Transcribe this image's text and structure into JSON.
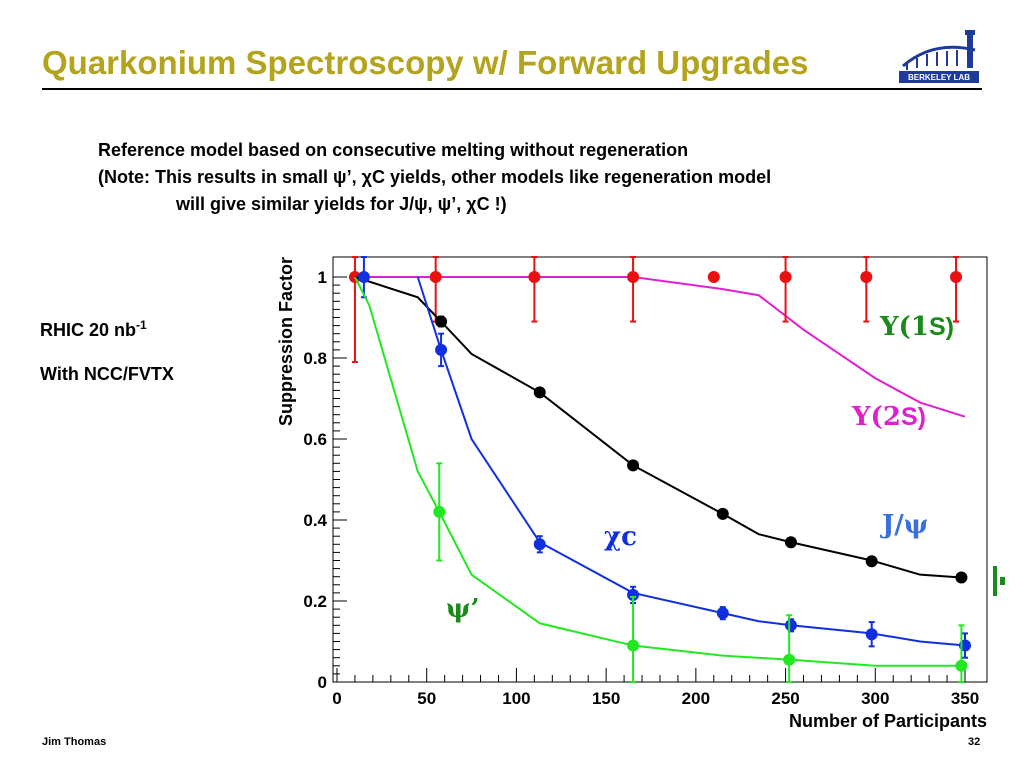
{
  "title": "Quarkonium Spectroscopy w/ Forward Upgrades",
  "intro": {
    "line1": "Reference model based on consecutive melting without regeneration",
    "line2": "(Note: This results in small ψ’, χC yields, other models like regeneration model",
    "line3": "will give similar yields for J/ψ, ψ’, χC !)"
  },
  "side": {
    "rhic_prefix": "RHIC  20 nb",
    "rhic_sup": "-1",
    "detector": "With NCC/FVTX"
  },
  "footer": {
    "author": "Jim Thomas",
    "page": "32"
  },
  "logo": {
    "text": "BERKELEY LAB"
  },
  "colors": {
    "title": "#b3a31d",
    "upsilon1s": "#1a8a1a",
    "upsilon2s": "#e020d0",
    "jpsi": "#3a6fe0",
    "chic": "#1030e0",
    "psiprime": "#1a8a1a"
  },
  "labels": {
    "upsilon1s": {
      "sym": "Υ(1",
      "s": "S)"
    },
    "upsilon2s": {
      "sym": "Υ(2",
      "s": "S)"
    },
    "jpsi": "J/ψ",
    "chic": "χc",
    "psiprime": "ψ’"
  },
  "chart_data": {
    "type": "scatter",
    "xlabel": "Number of Participants",
    "ylabel": "Suppression Factor",
    "xlim": [
      0,
      355
    ],
    "ylim": [
      0,
      1.02
    ],
    "xticks": [
      0,
      50,
      100,
      150,
      200,
      250,
      300,
      350
    ],
    "yticks": [
      0,
      0.2,
      0.4,
      0.6,
      0.8,
      1
    ],
    "series": [
      {
        "key": "upsilon2s",
        "color": "#e020d0",
        "line": [
          [
            10,
            1
          ],
          [
            55,
            1
          ],
          [
            110,
            1
          ],
          [
            165,
            1
          ],
          [
            215,
            0.97
          ],
          [
            235,
            0.955
          ],
          [
            260,
            0.87
          ],
          [
            300,
            0.75
          ],
          [
            325,
            0.69
          ],
          [
            350,
            0.655
          ]
        ],
        "points": []
      },
      {
        "key": "upsilon1s",
        "color": "#e81010",
        "line": [
          [
            10,
            1
          ],
          [
            55,
            1
          ],
          [
            110,
            1
          ],
          [
            165,
            1
          ],
          [
            210,
            1
          ],
          [
            250,
            1
          ],
          [
            295,
            1
          ],
          [
            345,
            1
          ]
        ],
        "points": [
          [
            10,
            1,
            0.21
          ],
          [
            55,
            1,
            0.11
          ],
          [
            110,
            1,
            0.11
          ],
          [
            165,
            1,
            0.11
          ],
          [
            210,
            1,
            0
          ],
          [
            250,
            1,
            0.11
          ],
          [
            295,
            1,
            0.11
          ],
          [
            345,
            1,
            0.11
          ]
        ]
      },
      {
        "key": "jpsi",
        "color": "#000000",
        "line": [
          [
            10,
            1
          ],
          [
            45,
            0.95
          ],
          [
            58,
            0.89
          ],
          [
            75,
            0.81
          ],
          [
            113,
            0.715
          ],
          [
            165,
            0.535
          ],
          [
            215,
            0.415
          ],
          [
            235,
            0.365
          ],
          [
            253,
            0.345
          ],
          [
            298,
            0.3
          ],
          [
            325,
            0.265
          ],
          [
            348,
            0.258
          ]
        ],
        "points": [
          [
            58,
            0.89,
            0.012
          ],
          [
            113,
            0.715,
            0.01
          ],
          [
            165,
            0.535,
            0.01
          ],
          [
            215,
            0.415,
            0.01
          ],
          [
            253,
            0.345,
            0.01
          ],
          [
            298,
            0.298,
            0.01
          ],
          [
            348,
            0.258,
            0.01
          ]
        ]
      },
      {
        "key": "chic",
        "color": "#1030e0",
        "line": [
          [
            45,
            1
          ],
          [
            58,
            0.82
          ],
          [
            75,
            0.6
          ],
          [
            113,
            0.345
          ],
          [
            165,
            0.22
          ],
          [
            215,
            0.17
          ],
          [
            235,
            0.15
          ],
          [
            253,
            0.14
          ],
          [
            298,
            0.12
          ],
          [
            325,
            0.1
          ],
          [
            350,
            0.09
          ]
        ],
        "points": [
          [
            15,
            1,
            0.05
          ],
          [
            58,
            0.82,
            0.04
          ],
          [
            113,
            0.34,
            0.02
          ],
          [
            165,
            0.215,
            0.02
          ],
          [
            215,
            0.17,
            0.015
          ],
          [
            253,
            0.14,
            0.015
          ],
          [
            298,
            0.118,
            0.03
          ],
          [
            350,
            0.09,
            0.03
          ]
        ]
      },
      {
        "key": "psiprime",
        "color": "#22e822",
        "line": [
          [
            10,
            1
          ],
          [
            18,
            0.93
          ],
          [
            45,
            0.52
          ],
          [
            57,
            0.42
          ],
          [
            75,
            0.265
          ],
          [
            113,
            0.145
          ],
          [
            165,
            0.09
          ],
          [
            215,
            0.065
          ],
          [
            253,
            0.055
          ],
          [
            300,
            0.04
          ],
          [
            350,
            0.04
          ]
        ],
        "points": [
          [
            57,
            0.42,
            0.12
          ],
          [
            165,
            0.09,
            0.12
          ],
          [
            252,
            0.055,
            0.11
          ],
          [
            348,
            0.04,
            0.1
          ]
        ]
      }
    ]
  }
}
